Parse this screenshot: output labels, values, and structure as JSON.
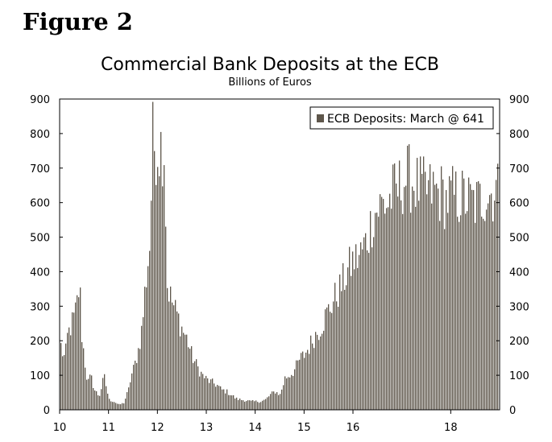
{
  "figure_label": "Figure 2",
  "chart_data": {
    "type": "bar",
    "title": "Commercial Bank Deposits at the ECB",
    "subtitle": "Billions of Euros",
    "legend": {
      "label": "ECB Deposits: March @ 641",
      "placement": "top-right"
    },
    "series_color": "#5e564b",
    "ylim": [
      0,
      900
    ],
    "xlim": [
      2010.0,
      2019.0
    ],
    "y_ticks": [
      0,
      100,
      200,
      300,
      400,
      500,
      600,
      700,
      800,
      900
    ],
    "y_tick_labels": [
      "0",
      "100",
      "200",
      "300",
      "400",
      "500",
      "600",
      "700",
      "800",
      "900"
    ],
    "x_ticks": [
      2010,
      2011,
      2012,
      2013,
      2014,
      2015,
      2016,
      2018
    ],
    "x_tick_labels": [
      "10",
      "11",
      "12",
      "13",
      "14",
      "15",
      "16",
      "18"
    ],
    "anchors": [
      [
        2010.0,
        200
      ],
      [
        2010.05,
        170
      ],
      [
        2010.1,
        150
      ],
      [
        2010.15,
        220
      ],
      [
        2010.22,
        250
      ],
      [
        2010.3,
        280
      ],
      [
        2010.36,
        330
      ],
      [
        2010.4,
        380
      ],
      [
        2010.44,
        230
      ],
      [
        2010.5,
        150
      ],
      [
        2010.56,
        80
      ],
      [
        2010.63,
        100
      ],
      [
        2010.7,
        60
      ],
      [
        2010.8,
        40
      ],
      [
        2010.9,
        100
      ],
      [
        2011.0,
        30
      ],
      [
        2011.1,
        25
      ],
      [
        2011.2,
        15
      ],
      [
        2011.3,
        20
      ],
      [
        2011.4,
        60
      ],
      [
        2011.45,
        100
      ],
      [
        2011.52,
        130
      ],
      [
        2011.6,
        180
      ],
      [
        2011.68,
        250
      ],
      [
        2011.72,
        330
      ],
      [
        2011.78,
        420
      ],
      [
        2011.82,
        480
      ],
      [
        2011.85,
        510
      ],
      [
        2011.88,
        820
      ],
      [
        2011.92,
        790
      ],
      [
        2012.0,
        785
      ],
      [
        2012.08,
        790
      ],
      [
        2012.14,
        780
      ],
      [
        2012.18,
        380
      ],
      [
        2012.25,
        340
      ],
      [
        2012.32,
        310
      ],
      [
        2012.4,
        280
      ],
      [
        2012.5,
        240
      ],
      [
        2012.6,
        210
      ],
      [
        2012.7,
        160
      ],
      [
        2012.8,
        130
      ],
      [
        2012.9,
        105
      ],
      [
        2013.0,
        90
      ],
      [
        2013.1,
        82
      ],
      [
        2013.2,
        75
      ],
      [
        2013.3,
        60
      ],
      [
        2013.4,
        55
      ],
      [
        2013.5,
        45
      ],
      [
        2013.6,
        33
      ],
      [
        2013.7,
        30
      ],
      [
        2013.8,
        28
      ],
      [
        2013.9,
        25
      ],
      [
        2014.0,
        25
      ],
      [
        2014.1,
        25
      ],
      [
        2014.2,
        30
      ],
      [
        2014.3,
        45
      ],
      [
        2014.4,
        55
      ],
      [
        2014.5,
        45
      ],
      [
        2014.6,
        95
      ],
      [
        2014.7,
        105
      ],
      [
        2014.8,
        120
      ],
      [
        2014.9,
        150
      ],
      [
        2015.0,
        165
      ],
      [
        2015.1,
        190
      ],
      [
        2015.2,
        220
      ],
      [
        2015.3,
        240
      ],
      [
        2015.4,
        270
      ],
      [
        2015.5,
        300
      ],
      [
        2015.6,
        330
      ],
      [
        2015.7,
        355
      ],
      [
        2015.8,
        385
      ],
      [
        2015.9,
        420
      ],
      [
        2016.0,
        445
      ],
      [
        2016.1,
        455
      ],
      [
        2016.2,
        480
      ],
      [
        2016.3,
        520
      ],
      [
        2016.4,
        580
      ],
      [
        2016.5,
        600
      ],
      [
        2016.6,
        615
      ],
      [
        2016.7,
        615
      ],
      [
        2016.8,
        645
      ],
      [
        2016.9,
        655
      ],
      [
        2017.0,
        680
      ],
      [
        2017.1,
        695
      ],
      [
        2017.2,
        685
      ],
      [
        2017.3,
        670
      ],
      [
        2017.4,
        660
      ],
      [
        2017.5,
        650
      ],
      [
        2017.6,
        655
      ],
      [
        2017.7,
        650
      ],
      [
        2017.8,
        645
      ],
      [
        2017.9,
        625
      ],
      [
        2018.0,
        640
      ],
      [
        2018.1,
        635
      ],
      [
        2018.2,
        635
      ],
      [
        2018.3,
        630
      ],
      [
        2018.4,
        620
      ],
      [
        2018.5,
        615
      ],
      [
        2018.6,
        625
      ],
      [
        2018.7,
        650
      ],
      [
        2018.8,
        645
      ],
      [
        2018.85,
        650
      ],
      [
        2018.9,
        665
      ],
      [
        2019.0,
        641
      ]
    ]
  }
}
